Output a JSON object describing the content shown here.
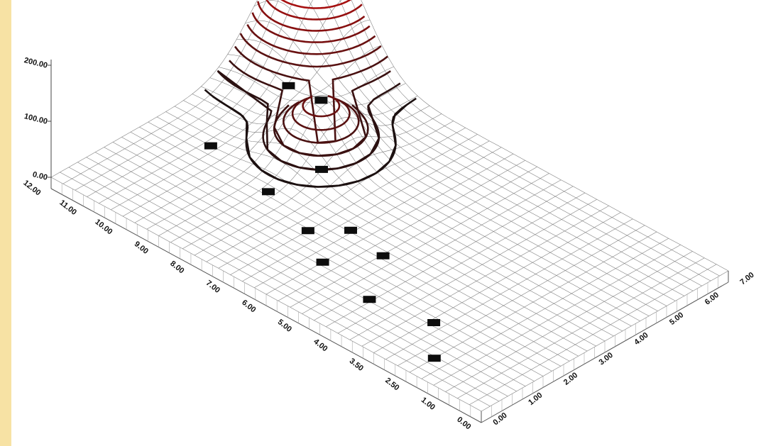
{
  "chart_data": {
    "type": "surface",
    "title": "",
    "xlabel": "",
    "ylabel": "",
    "zlabel": "",
    "x_ticks": [
      "0.00",
      "1.00",
      "2.00",
      "3.00",
      "4.00",
      "5.00",
      "6.00",
      "7.00"
    ],
    "y_ticks": [
      "0.00",
      "1.00",
      "2.50",
      "3.50",
      "4.00",
      "5.00",
      "6.00",
      "7.00",
      "8.00",
      "9.00",
      "10.00",
      "11.00",
      "12.00"
    ],
    "z_ticks": [
      "0.00",
      "100.00",
      "200.00"
    ],
    "xlim": [
      0,
      7
    ],
    "ylim": [
      0,
      12
    ],
    "zlim": [
      0,
      200
    ],
    "grid": true,
    "legend": "none",
    "peaks": [
      {
        "x": 6.7,
        "y": 11.2,
        "z": 200,
        "sigma": 1.05
      },
      {
        "x": 4.4,
        "y": 8.8,
        "z": 90,
        "sigma": 0.7
      }
    ],
    "contour_colors": {
      "high": "#c01010",
      "low": "#111111"
    },
    "sample_points": [
      {
        "x": 6.7,
        "y": 11.2
      },
      {
        "x": 5.0,
        "y": 10.3
      },
      {
        "x": 4.4,
        "y": 8.8
      },
      {
        "x": 3.6,
        "y": 8.0
      },
      {
        "x": 3.0,
        "y": 10.5
      },
      {
        "x": 2.6,
        "y": 8.5
      },
      {
        "x": 2.8,
        "y": 6.4
      },
      {
        "x": 2.2,
        "y": 7.0
      },
      {
        "x": 2.6,
        "y": 5.3
      },
      {
        "x": 1.6,
        "y": 6.0
      },
      {
        "x": 1.3,
        "y": 4.4
      },
      {
        "x": 1.6,
        "y": 2.9
      },
      {
        "x": 0.7,
        "y": 2.0
      }
    ]
  }
}
